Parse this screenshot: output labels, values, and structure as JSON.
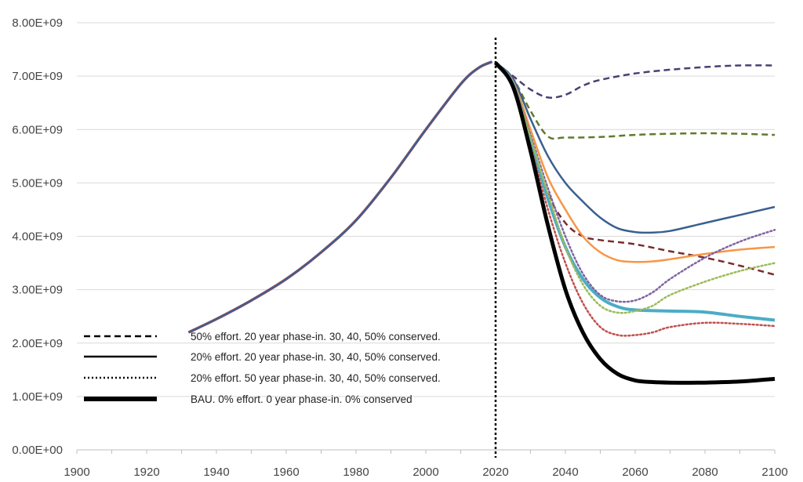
{
  "chart_data": {
    "type": "line",
    "title": "",
    "xlabel": "",
    "ylabel": "",
    "xlim": [
      1900,
      2100
    ],
    "ylim": [
      0,
      8000000000
    ],
    "x_ticks": [
      "1900",
      "1920",
      "1940",
      "1960",
      "1980",
      "2000",
      "2020",
      "2040",
      "2060",
      "2080",
      "2100"
    ],
    "y_ticks": [
      "0.00E+00",
      "1.00E+09",
      "2.00E+09",
      "3.00E+09",
      "4.00E+09",
      "5.00E+09",
      "6.00E+09",
      "7.00E+09",
      "8.00E+09"
    ],
    "grid": "horizontal",
    "vertical_marker_x": 2020,
    "legend_position": "bottom-left",
    "legend": [
      {
        "label": "50% effort. 20 year phase-in. 30, 40, 50% conserved.",
        "style": "dashed"
      },
      {
        "label": "20% effort. 20 year phase-in. 30, 40, 50% conserved.",
        "style": "solid"
      },
      {
        "label": "20% effort. 50 year phase-in. 30, 40, 50% conserved.",
        "style": "dotted"
      },
      {
        "label": "BAU. 0% effort. 0 year phase-in. 0% conserved",
        "style": "thick"
      }
    ],
    "historical": {
      "x": [
        1932,
        1940,
        1950,
        1960,
        1970,
        1980,
        1990,
        2000,
        2010,
        2015,
        2019
      ],
      "y": [
        2200000000.0,
        2450000000.0,
        2800000000.0,
        3200000000.0,
        3700000000.0,
        4300000000.0,
        5100000000.0,
        6000000000.0,
        6850000000.0,
        7150000000.0,
        7270000000.0
      ],
      "colors": [
        "#c0504d",
        "#3a5f8f"
      ]
    },
    "series": [
      {
        "style": "dashed",
        "color": "#4b3f72",
        "width": 2.5,
        "x": [
          2020,
          2025,
          2030,
          2035,
          2040,
          2045,
          2050,
          2060,
          2070,
          2080,
          2090,
          2100
        ],
        "y": [
          7250000000.0,
          7000000000.0,
          6750000000.0,
          6600000000.0,
          6650000000.0,
          6820000000.0,
          6930000000.0,
          7050000000.0,
          7120000000.0,
          7170000000.0,
          7200000000.0,
          7200000000.0
        ]
      },
      {
        "style": "dashed",
        "color": "#5f7a2e",
        "width": 2.5,
        "x": [
          2020,
          2025,
          2030,
          2035,
          2040,
          2050,
          2060,
          2070,
          2080,
          2090,
          2100
        ],
        "y": [
          7250000000.0,
          6950000000.0,
          6350000000.0,
          5870000000.0,
          5850000000.0,
          5860000000.0,
          5900000000.0,
          5920000000.0,
          5930000000.0,
          5920000000.0,
          5900000000.0
        ]
      },
      {
        "style": "dashed",
        "color": "#7b2b2b",
        "width": 2.5,
        "x": [
          2020,
          2025,
          2030,
          2035,
          2040,
          2045,
          2050,
          2060,
          2070,
          2080,
          2090,
          2100
        ],
        "y": [
          7250000000.0,
          6800000000.0,
          5800000000.0,
          4800000000.0,
          4250000000.0,
          4000000000.0,
          3930000000.0,
          3850000000.0,
          3720000000.0,
          3600000000.0,
          3450000000.0,
          3280000000.0
        ]
      },
      {
        "style": "solid",
        "color": "#3a5f8f",
        "width": 2.5,
        "x": [
          2020,
          2025,
          2030,
          2035,
          2040,
          2045,
          2050,
          2055,
          2060,
          2065,
          2070,
          2080,
          2090,
          2100
        ],
        "y": [
          7250000000.0,
          6950000000.0,
          6200000000.0,
          5500000000.0,
          5000000000.0,
          4650000000.0,
          4350000000.0,
          4150000000.0,
          4080000000.0,
          4070000000.0,
          4100000000.0,
          4250000000.0,
          4400000000.0,
          4550000000.0
        ]
      },
      {
        "style": "solid",
        "color": "#f79646",
        "width": 2.5,
        "x": [
          2020,
          2025,
          2030,
          2035,
          2040,
          2045,
          2050,
          2055,
          2060,
          2065,
          2070,
          2080,
          2090,
          2100
        ],
        "y": [
          7250000000.0,
          6900000000.0,
          6000000000.0,
          5100000000.0,
          4500000000.0,
          4000000000.0,
          3700000000.0,
          3550000000.0,
          3520000000.0,
          3530000000.0,
          3570000000.0,
          3670000000.0,
          3750000000.0,
          3800000000.0
        ]
      },
      {
        "style": "solid",
        "color": "#4bacc6",
        "width": 4,
        "x": [
          2020,
          2025,
          2030,
          2035,
          2040,
          2045,
          2050,
          2055,
          2060,
          2070,
          2080,
          2090,
          2100
        ],
        "y": [
          7250000000.0,
          6850000000.0,
          5800000000.0,
          4700000000.0,
          3800000000.0,
          3200000000.0,
          2850000000.0,
          2680000000.0,
          2620000000.0,
          2600000000.0,
          2580000000.0,
          2500000000.0,
          2430000000.0
        ]
      },
      {
        "style": "dotted",
        "color": "#8064a2",
        "width": 2.5,
        "x": [
          2020,
          2025,
          2030,
          2035,
          2040,
          2045,
          2050,
          2055,
          2060,
          2065,
          2070,
          2080,
          2090,
          2100
        ],
        "y": [
          7250000000.0,
          6850000000.0,
          5900000000.0,
          4900000000.0,
          4000000000.0,
          3300000000.0,
          2900000000.0,
          2780000000.0,
          2800000000.0,
          2950000000.0,
          3200000000.0,
          3600000000.0,
          3900000000.0,
          4120000000.0
        ]
      },
      {
        "style": "dotted",
        "color": "#9bbb59",
        "width": 2.5,
        "x": [
          2020,
          2025,
          2030,
          2035,
          2040,
          2045,
          2050,
          2055,
          2060,
          2065,
          2070,
          2080,
          2090,
          2100
        ],
        "y": [
          7250000000.0,
          6850000000.0,
          5850000000.0,
          4800000000.0,
          3800000000.0,
          3100000000.0,
          2700000000.0,
          2570000000.0,
          2600000000.0,
          2700000000.0,
          2900000000.0,
          3150000000.0,
          3350000000.0,
          3500000000.0
        ]
      },
      {
        "style": "dotted",
        "color": "#c0504d",
        "width": 2.5,
        "x": [
          2020,
          2025,
          2030,
          2035,
          2040,
          2045,
          2050,
          2055,
          2060,
          2065,
          2070,
          2080,
          2090,
          2100
        ],
        "y": [
          7250000000.0,
          6800000000.0,
          5700000000.0,
          4500000000.0,
          3500000000.0,
          2750000000.0,
          2300000000.0,
          2150000000.0,
          2150000000.0,
          2200000000.0,
          2300000000.0,
          2380000000.0,
          2360000000.0,
          2320000000.0
        ]
      },
      {
        "style": "thick",
        "color": "#000000",
        "width": 5,
        "x": [
          2020,
          2025,
          2030,
          2035,
          2040,
          2045,
          2050,
          2055,
          2060,
          2065,
          2070,
          2080,
          2090,
          2100
        ],
        "y": [
          7250000000.0,
          6800000000.0,
          5600000000.0,
          4200000000.0,
          3000000000.0,
          2200000000.0,
          1700000000.0,
          1420000000.0,
          1300000000.0,
          1270000000.0,
          1260000000.0,
          1260000000.0,
          1280000000.0,
          1330000000.0
        ]
      }
    ]
  }
}
